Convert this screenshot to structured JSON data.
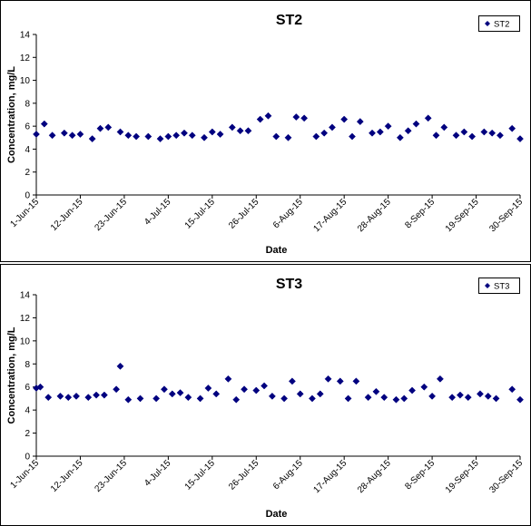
{
  "chart_data": [
    {
      "type": "scatter",
      "title": "ST2",
      "xlabel": "Date",
      "ylabel": "Concentration, mg/L",
      "ylim": [
        0,
        14
      ],
      "yticks": [
        0,
        2,
        4,
        6,
        8,
        10,
        12,
        14
      ],
      "xlim": [
        "2015-06-01",
        "2015-09-30"
      ],
      "xtick_labels": [
        "1-Jun-15",
        "12-Jun-15",
        "23-Jun-15",
        "4-Jul-15",
        "15-Jul-15",
        "26-Jul-15",
        "6-Aug-15",
        "17-Aug-15",
        "28-Aug-15",
        "8-Sep-15",
        "19-Sep-15",
        "30-Sep-15"
      ],
      "xtick_dates": [
        "2015-06-01",
        "2015-06-12",
        "2015-06-23",
        "2015-07-04",
        "2015-07-15",
        "2015-07-26",
        "2015-08-06",
        "2015-08-17",
        "2015-08-28",
        "2015-09-08",
        "2015-09-19",
        "2015-09-30"
      ],
      "grid": false,
      "legend_position": "top-right",
      "series": [
        {
          "name": "ST2",
          "color": "#00007F",
          "marker": "diamond",
          "points": [
            [
              "2015-06-01",
              5.3
            ],
            [
              "2015-06-03",
              6.2
            ],
            [
              "2015-06-05",
              5.2
            ],
            [
              "2015-06-08",
              5.4
            ],
            [
              "2015-06-10",
              5.2
            ],
            [
              "2015-06-12",
              5.3
            ],
            [
              "2015-06-15",
              4.9
            ],
            [
              "2015-06-17",
              5.8
            ],
            [
              "2015-06-19",
              5.9
            ],
            [
              "2015-06-22",
              5.5
            ],
            [
              "2015-06-24",
              5.2
            ],
            [
              "2015-06-26",
              5.1
            ],
            [
              "2015-06-29",
              5.1
            ],
            [
              "2015-07-02",
              4.9
            ],
            [
              "2015-07-04",
              5.1
            ],
            [
              "2015-07-06",
              5.2
            ],
            [
              "2015-07-08",
              5.4
            ],
            [
              "2015-07-10",
              5.2
            ],
            [
              "2015-07-13",
              5.0
            ],
            [
              "2015-07-15",
              5.5
            ],
            [
              "2015-07-17",
              5.3
            ],
            [
              "2015-07-20",
              5.9
            ],
            [
              "2015-07-22",
              5.6
            ],
            [
              "2015-07-24",
              5.6
            ],
            [
              "2015-07-27",
              6.6
            ],
            [
              "2015-07-29",
              6.9
            ],
            [
              "2015-07-31",
              5.1
            ],
            [
              "2015-08-03",
              5.0
            ],
            [
              "2015-08-05",
              6.8
            ],
            [
              "2015-08-07",
              6.7
            ],
            [
              "2015-08-10",
              5.1
            ],
            [
              "2015-08-12",
              5.4
            ],
            [
              "2015-08-14",
              5.9
            ],
            [
              "2015-08-17",
              6.6
            ],
            [
              "2015-08-19",
              5.1
            ],
            [
              "2015-08-21",
              6.4
            ],
            [
              "2015-08-24",
              5.4
            ],
            [
              "2015-08-26",
              5.5
            ],
            [
              "2015-08-28",
              6.0
            ],
            [
              "2015-08-31",
              5.0
            ],
            [
              "2015-09-02",
              5.6
            ],
            [
              "2015-09-04",
              6.2
            ],
            [
              "2015-09-07",
              6.7
            ],
            [
              "2015-09-09",
              5.2
            ],
            [
              "2015-09-11",
              5.9
            ],
            [
              "2015-09-14",
              5.2
            ],
            [
              "2015-09-16",
              5.5
            ],
            [
              "2015-09-18",
              5.1
            ],
            [
              "2015-09-21",
              5.5
            ],
            [
              "2015-09-23",
              5.4
            ],
            [
              "2015-09-25",
              5.2
            ],
            [
              "2015-09-28",
              5.8
            ],
            [
              "2015-09-30",
              4.9
            ]
          ]
        }
      ]
    },
    {
      "type": "scatter",
      "title": "ST3",
      "xlabel": "Date",
      "ylabel": "Concentration, mg/L",
      "ylim": [
        0,
        14
      ],
      "yticks": [
        0,
        2,
        4,
        6,
        8,
        10,
        12,
        14
      ],
      "xlim": [
        "2015-06-01",
        "2015-09-30"
      ],
      "xtick_labels": [
        "1-Jun-15",
        "12-Jun-15",
        "23-Jun-15",
        "4-Jul-15",
        "15-Jul-15",
        "26-Jul-15",
        "6-Aug-15",
        "17-Aug-15",
        "28-Aug-15",
        "8-Sep-15",
        "19-Sep-15",
        "30-Sep-15"
      ],
      "xtick_dates": [
        "2015-06-01",
        "2015-06-12",
        "2015-06-23",
        "2015-07-04",
        "2015-07-15",
        "2015-07-26",
        "2015-08-06",
        "2015-08-17",
        "2015-08-28",
        "2015-09-08",
        "2015-09-19",
        "2015-09-30"
      ],
      "grid": false,
      "legend_position": "top-right",
      "series": [
        {
          "name": "ST3",
          "color": "#00007F",
          "marker": "diamond",
          "points": [
            [
              "2015-06-01",
              5.9
            ],
            [
              "2015-06-02",
              6.0
            ],
            [
              "2015-06-04",
              5.1
            ],
            [
              "2015-06-07",
              5.2
            ],
            [
              "2015-06-09",
              5.1
            ],
            [
              "2015-06-11",
              5.2
            ],
            [
              "2015-06-14",
              5.1
            ],
            [
              "2015-06-16",
              5.3
            ],
            [
              "2015-06-18",
              5.3
            ],
            [
              "2015-06-21",
              5.8
            ],
            [
              "2015-06-22",
              7.8
            ],
            [
              "2015-06-24",
              4.9
            ],
            [
              "2015-06-27",
              5.0
            ],
            [
              "2015-07-01",
              5.0
            ],
            [
              "2015-07-03",
              5.8
            ],
            [
              "2015-07-05",
              5.4
            ],
            [
              "2015-07-07",
              5.5
            ],
            [
              "2015-07-09",
              5.1
            ],
            [
              "2015-07-12",
              5.0
            ],
            [
              "2015-07-14",
              5.9
            ],
            [
              "2015-07-16",
              5.4
            ],
            [
              "2015-07-19",
              6.7
            ],
            [
              "2015-07-21",
              4.9
            ],
            [
              "2015-07-23",
              5.8
            ],
            [
              "2015-07-26",
              5.7
            ],
            [
              "2015-07-28",
              6.1
            ],
            [
              "2015-07-30",
              5.2
            ],
            [
              "2015-08-02",
              5.0
            ],
            [
              "2015-08-04",
              6.5
            ],
            [
              "2015-08-06",
              5.4
            ],
            [
              "2015-08-09",
              5.0
            ],
            [
              "2015-08-11",
              5.4
            ],
            [
              "2015-08-13",
              6.7
            ],
            [
              "2015-08-16",
              6.5
            ],
            [
              "2015-08-18",
              5.0
            ],
            [
              "2015-08-20",
              6.5
            ],
            [
              "2015-08-23",
              5.1
            ],
            [
              "2015-08-25",
              5.6
            ],
            [
              "2015-08-27",
              5.1
            ],
            [
              "2015-08-30",
              4.9
            ],
            [
              "2015-09-01",
              5.0
            ],
            [
              "2015-09-03",
              5.7
            ],
            [
              "2015-09-06",
              6.0
            ],
            [
              "2015-09-08",
              5.2
            ],
            [
              "2015-09-10",
              6.7
            ],
            [
              "2015-09-13",
              5.1
            ],
            [
              "2015-09-15",
              5.3
            ],
            [
              "2015-09-17",
              5.1
            ],
            [
              "2015-09-20",
              5.4
            ],
            [
              "2015-09-22",
              5.2
            ],
            [
              "2015-09-24",
              5.0
            ],
            [
              "2015-09-28",
              5.8
            ],
            [
              "2015-09-30",
              4.9
            ]
          ]
        }
      ]
    }
  ]
}
